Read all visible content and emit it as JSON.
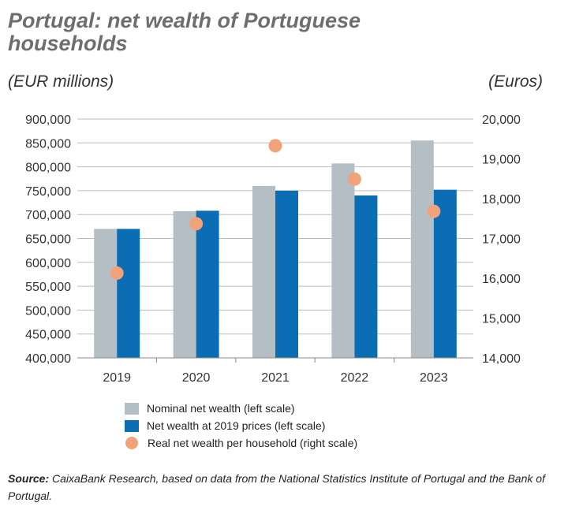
{
  "header": {
    "title": "Portugal: net wealth of Portuguese households",
    "left_unit": "(EUR millions)",
    "right_unit": "(Euros)"
  },
  "colors": {
    "nominal": "#b3bfc4",
    "real_prices": "#0b6db3",
    "per_household": "#f2a279",
    "grid": "#bbbbbb"
  },
  "chart_data": {
    "type": "bar",
    "categories": [
      "2019",
      "2020",
      "2021",
      "2022",
      "2023"
    ],
    "series": [
      {
        "name": "Nominal net wealth (left scale)",
        "axis": "left",
        "kind": "bar",
        "values": [
          670000,
          707000,
          760000,
          807000,
          855000
        ]
      },
      {
        "name": "Net wealth at 2019 prices (left scale)",
        "axis": "left",
        "kind": "bar",
        "values": [
          670000,
          708000,
          750000,
          740000,
          752000
        ]
      },
      {
        "name": "Real net wealth per household (right scale)",
        "axis": "right",
        "kind": "scatter",
        "values": [
          16130,
          17370,
          19330,
          18490,
          17680
        ]
      }
    ],
    "left_axis": {
      "ylim": [
        400000,
        900000
      ],
      "ticks": [
        "400,000",
        "450,000",
        "500,000",
        "550,000",
        "600,000",
        "650,000",
        "700,000",
        "750,000",
        "800,000",
        "850,000",
        "900,000"
      ]
    },
    "right_axis": {
      "ylim": [
        14000,
        20000
      ],
      "ticks": [
        "14,000",
        "15,000",
        "16,000",
        "17,000",
        "18,000",
        "19,000",
        "20,000"
      ]
    },
    "grid": true,
    "legend_position": "bottom"
  },
  "source": {
    "label": "Source:",
    "text": " CaixaBank Research, based on data from the National Statistics Institute of Portugal and the Bank of Portugal."
  }
}
